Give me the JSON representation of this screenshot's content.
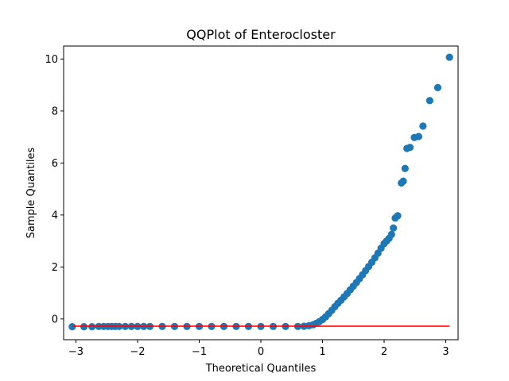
{
  "chart_data": {
    "type": "scatter",
    "title": "QQPlot of Enterocloster",
    "xlabel": "Theoretical Quantiles",
    "ylabel": "Sample Quantiles",
    "xlim": [
      -3.2,
      3.2
    ],
    "ylim": [
      -0.8,
      10.5
    ],
    "xticks": [
      -3,
      -2,
      -1,
      0,
      1,
      2,
      3
    ],
    "yticks": [
      0,
      2,
      4,
      6,
      8,
      10
    ],
    "grid": false,
    "colors": {
      "points": "#1f77b4",
      "reference_line": "#ff0000"
    },
    "reference_line": {
      "x": [
        -3.06,
        3.06
      ],
      "y": [
        -0.28,
        -0.28
      ]
    },
    "series": [
      {
        "x": [
          -3.06,
          -2.87,
          -2.74,
          -2.63,
          -2.55,
          -2.48,
          -2.42,
          -2.36,
          -2.3,
          -2.2,
          -2.1,
          -2.0,
          -1.9,
          -1.8,
          -1.6,
          -1.4,
          -1.2,
          -1.0,
          -0.8,
          -0.6,
          -0.4,
          -0.2,
          0.0,
          0.2,
          0.4,
          0.6,
          0.7,
          0.78,
          0.85,
          0.9,
          0.95,
          1.0,
          1.05,
          1.1,
          1.15,
          1.2,
          1.25,
          1.3,
          1.35,
          1.4,
          1.45,
          1.5,
          1.55,
          1.6,
          1.65,
          1.7,
          1.75,
          1.8,
          1.85,
          1.9,
          1.95,
          2.0,
          2.04,
          2.08,
          2.12,
          2.15,
          2.18,
          2.22,
          2.28,
          2.31,
          2.34,
          2.37,
          2.42,
          2.49,
          2.56,
          2.63,
          2.74,
          2.87,
          3.06
        ],
        "y": [
          -0.3,
          -0.3,
          -0.3,
          -0.29,
          -0.29,
          -0.29,
          -0.29,
          -0.29,
          -0.29,
          -0.29,
          -0.29,
          -0.29,
          -0.29,
          -0.29,
          -0.29,
          -0.29,
          -0.29,
          -0.29,
          -0.29,
          -0.29,
          -0.29,
          -0.29,
          -0.29,
          -0.29,
          -0.29,
          -0.29,
          -0.28,
          -0.26,
          -0.22,
          -0.17,
          -0.1,
          -0.02,
          0.08,
          0.2,
          0.33,
          0.47,
          0.6,
          0.72,
          0.85,
          0.98,
          1.12,
          1.26,
          1.4,
          1.55,
          1.7,
          1.86,
          2.02,
          2.18,
          2.35,
          2.53,
          2.72,
          2.9,
          3.0,
          3.1,
          3.25,
          3.5,
          3.88,
          3.97,
          5.23,
          5.3,
          5.79,
          6.56,
          6.6,
          6.98,
          7.02,
          7.42,
          8.4,
          8.9,
          10.07
        ]
      }
    ]
  }
}
